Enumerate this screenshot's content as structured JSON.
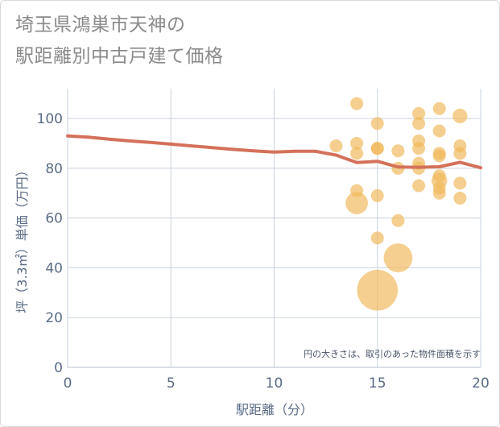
{
  "title_lines": [
    "埼玉県鴻巣市天神の",
    "駅距離別中古戸建て価格"
  ],
  "note": "円の大きさは、取引のあった物件面積を示す",
  "chart_data": {
    "type": "scatter",
    "xlabel": "駅距離（分）",
    "ylabel": "坪（3.3㎡）単価（万円）",
    "xlim": [
      0,
      20
    ],
    "ylim": [
      0,
      112
    ],
    "xticks": [
      0,
      5,
      10,
      15,
      20
    ],
    "yticks": [
      0,
      20,
      40,
      60,
      80,
      100
    ],
    "grid": true,
    "colors": {
      "line": "#d4715a",
      "bubble": "#f0b85a",
      "axis_text": "#5a6b86",
      "grid": "#c9d3de"
    },
    "trend_line": {
      "x": [
        0,
        1,
        2,
        3,
        4,
        5,
        6,
        7,
        8,
        9,
        10,
        11,
        12,
        13,
        14,
        15,
        16,
        17,
        18,
        19,
        20
      ],
      "y": [
        93,
        92.5,
        91.7,
        91,
        90.4,
        89.7,
        89,
        88.3,
        87.6,
        87,
        86.5,
        86.8,
        86.8,
        85.3,
        82.3,
        82.8,
        80.5,
        80.4,
        80.6,
        82.4,
        80.2
      ]
    },
    "points": [
      {
        "x": 13,
        "y": 89,
        "size": 1
      },
      {
        "x": 14,
        "y": 106,
        "size": 1
      },
      {
        "x": 14,
        "y": 90,
        "size": 1
      },
      {
        "x": 14,
        "y": 86,
        "size": 1
      },
      {
        "x": 14,
        "y": 71,
        "size": 1
      },
      {
        "x": 14,
        "y": 66,
        "size": 3
      },
      {
        "x": 15,
        "y": 98,
        "size": 1
      },
      {
        "x": 15,
        "y": 88,
        "size": 1
      },
      {
        "x": 15,
        "y": 88,
        "size": 1
      },
      {
        "x": 15,
        "y": 69,
        "size": 1
      },
      {
        "x": 15,
        "y": 52,
        "size": 1
      },
      {
        "x": 15,
        "y": 31,
        "size": 10
      },
      {
        "x": 16,
        "y": 87,
        "size": 1
      },
      {
        "x": 16,
        "y": 80,
        "size": 1
      },
      {
        "x": 16,
        "y": 59,
        "size": 1
      },
      {
        "x": 16,
        "y": 44,
        "size": 5
      },
      {
        "x": 17,
        "y": 102,
        "size": 1
      },
      {
        "x": 17,
        "y": 98,
        "size": 1
      },
      {
        "x": 17,
        "y": 91,
        "size": 1
      },
      {
        "x": 17,
        "y": 88,
        "size": 1
      },
      {
        "x": 17,
        "y": 82,
        "size": 1
      },
      {
        "x": 17,
        "y": 80,
        "size": 1
      },
      {
        "x": 17,
        "y": 73,
        "size": 1
      },
      {
        "x": 18,
        "y": 104,
        "size": 1
      },
      {
        "x": 18,
        "y": 95,
        "size": 1
      },
      {
        "x": 18,
        "y": 86,
        "size": 1
      },
      {
        "x": 18,
        "y": 85,
        "size": 1
      },
      {
        "x": 18,
        "y": 77,
        "size": 1
      },
      {
        "x": 18,
        "y": 75,
        "size": 1.5
      },
      {
        "x": 18,
        "y": 72,
        "size": 1
      },
      {
        "x": 18,
        "y": 70,
        "size": 1
      },
      {
        "x": 19,
        "y": 101,
        "size": 1.3
      },
      {
        "x": 19,
        "y": 89,
        "size": 1
      },
      {
        "x": 19,
        "y": 86,
        "size": 1
      },
      {
        "x": 19,
        "y": 74,
        "size": 1
      },
      {
        "x": 19,
        "y": 68,
        "size": 1
      }
    ]
  }
}
